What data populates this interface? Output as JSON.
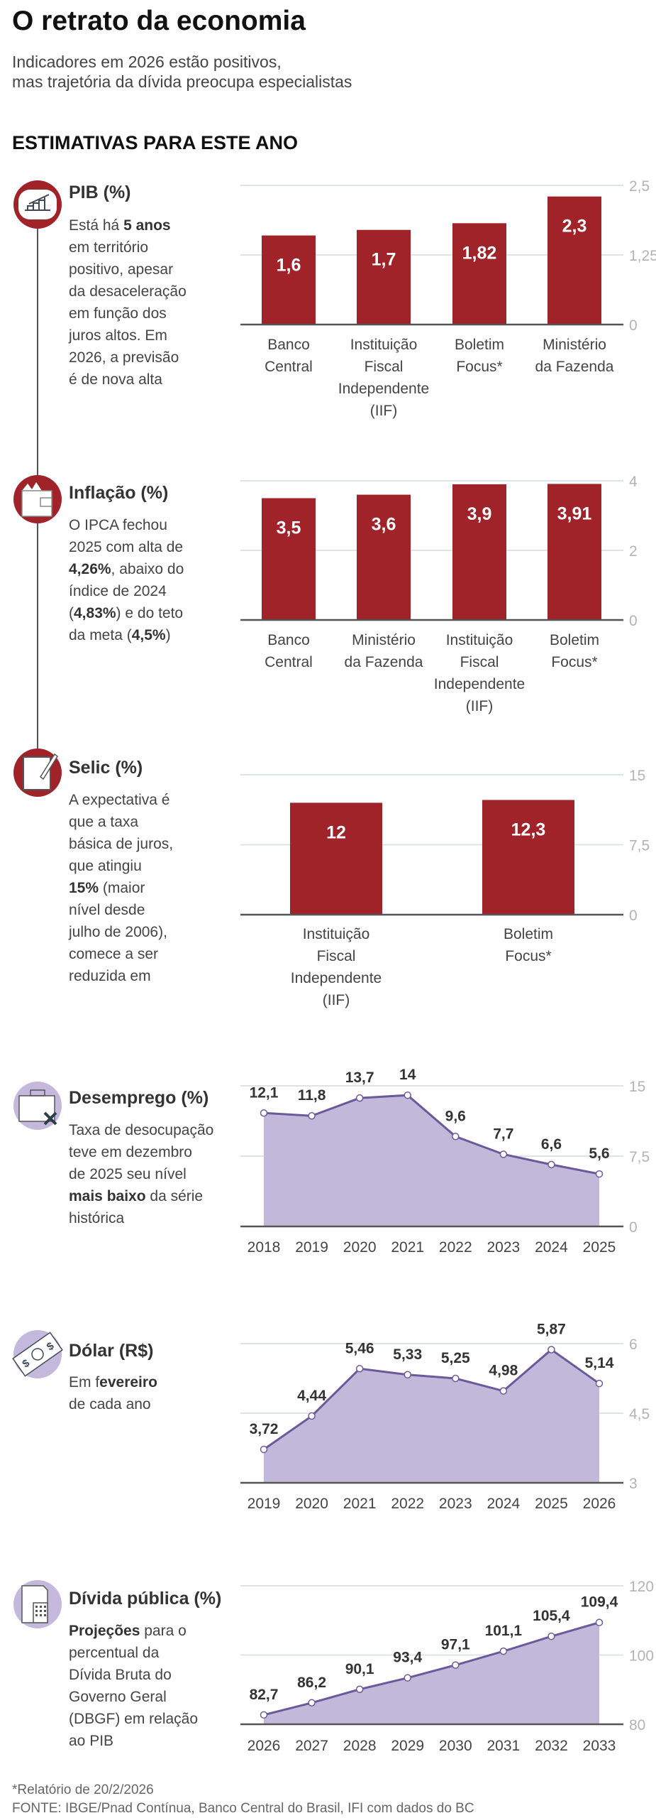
{
  "header": {
    "title": "O retrato da economia",
    "subtitle_lines": [
      "Indicadores em 2026 estão positivos,",
      "mas trajetória da dívida preocupa especialistas"
    ],
    "section_title": "ESTIMATIVAS PARA ESTE ANO"
  },
  "colors": {
    "bar": "#a0232a",
    "area": "#c2b8da",
    "line": "#6a5a9c",
    "icon_red": "#a0232a",
    "icon_purple": "#c4b9dc"
  },
  "indicators": [
    {
      "title": "PIB (%)",
      "icon": "growth-chart-icon",
      "desc": [
        [
          {
            "t": "Está há "
          },
          {
            "t": "5 anos",
            "b": true
          }
        ],
        [
          {
            "t": "em território"
          }
        ],
        [
          {
            "t": "positivo, apesar"
          }
        ],
        [
          {
            "t": "da desaceleração"
          }
        ],
        [
          {
            "t": "em função dos"
          }
        ],
        [
          {
            "t": "juros altos. Em"
          }
        ],
        [
          {
            "t": "2026, a previsão"
          }
        ],
        [
          {
            "t": "é de nova alta"
          }
        ]
      ]
    },
    {
      "title": "Inflação (%)",
      "icon": "wallet-icon",
      "desc": [
        [
          {
            "t": "O IPCA fechou"
          }
        ],
        [
          {
            "t": "2025 com alta de"
          }
        ],
        [
          {
            "t": "4,26%",
            "b": true
          },
          {
            "t": ", abaixo do"
          }
        ],
        [
          {
            "t": "índice de 2024"
          }
        ],
        [
          {
            "t": "("
          },
          {
            "t": "4,83%",
            "b": true
          },
          {
            "t": ") e do teto"
          }
        ],
        [
          {
            "t": "da meta ("
          },
          {
            "t": "4,5%",
            "b": true
          },
          {
            "t": ")"
          }
        ]
      ]
    },
    {
      "title": "Selic (%)",
      "icon": "notepad-pen-icon",
      "desc": [
        [
          {
            "t": "A expectativa é"
          }
        ],
        [
          {
            "t": "que a taxa"
          }
        ],
        [
          {
            "t": "básica de juros,"
          }
        ],
        [
          {
            "t": "que atingiu"
          }
        ],
        [
          {
            "t": "15%",
            "b": true
          },
          {
            "t": " (maior"
          }
        ],
        [
          {
            "t": "nível desde"
          }
        ],
        [
          {
            "t": "julho de 2006),"
          }
        ],
        [
          {
            "t": "comece a ser"
          }
        ],
        [
          {
            "t": "reduzida em"
          }
        ]
      ]
    },
    {
      "title": "Desemprego (%)",
      "icon": "briefcase-x-icon",
      "desc": [
        [
          {
            "t": "Taxa de desocupação"
          }
        ],
        [
          {
            "t": "teve em dezembro"
          }
        ],
        [
          {
            "t": "de 2025 seu nível"
          }
        ],
        [
          {
            "t": "mais baixo",
            "b": true
          },
          {
            "t": " da série"
          }
        ],
        [
          {
            "t": "histórica"
          }
        ]
      ]
    },
    {
      "title": "Dólar (R$)",
      "icon": "banknote-icon",
      "desc": [
        [
          {
            "t": "Em f"
          },
          {
            "t": "evereiro",
            "b": true
          }
        ],
        [
          {
            "t": "de cada ano"
          }
        ]
      ]
    },
    {
      "title": "Dívida pública (%)",
      "icon": "building-document-icon",
      "desc": [
        [
          {
            "t": "Projeções",
            "b": true
          },
          {
            "t": " para o"
          }
        ],
        [
          {
            "t": "percentual da"
          }
        ],
        [
          {
            "t": "Dívida Bruta do"
          }
        ],
        [
          {
            "t": "Governo Geral"
          }
        ],
        [
          {
            "t": "(DBGF) em relação"
          }
        ],
        [
          {
            "t": "ao PIB"
          }
        ]
      ]
    }
  ],
  "chart_data": [
    {
      "type": "bar",
      "title": "PIB (%)",
      "categories": [
        [
          "Banco",
          "Central"
        ],
        [
          "Instituição",
          "Fiscal",
          "Independente",
          "(IIF)"
        ],
        [
          "Boletim",
          "Focus*"
        ],
        [
          "Ministério",
          "da Fazenda"
        ]
      ],
      "values": [
        1.6,
        1.7,
        1.82,
        2.3
      ],
      "value_labels": [
        "1,6",
        "1,7",
        "1,82",
        "2,3"
      ],
      "ylim": [
        0,
        2.5
      ],
      "yticks": [
        0,
        1.25,
        2.5
      ],
      "ytick_labels": [
        "0",
        "1,25",
        "2,5"
      ],
      "grid": true
    },
    {
      "type": "bar",
      "title": "Inflação (%)",
      "categories": [
        [
          "Banco",
          "Central"
        ],
        [
          "Ministério",
          "da Fazenda"
        ],
        [
          "Instituição",
          "Fiscal",
          "Independente",
          "(IIF)"
        ],
        [
          "Boletim",
          "Focus*"
        ]
      ],
      "values": [
        3.5,
        3.6,
        3.9,
        3.91
      ],
      "value_labels": [
        "3,5",
        "3,6",
        "3,9",
        "3,91"
      ],
      "ylim": [
        0,
        4
      ],
      "yticks": [
        0,
        2,
        4
      ],
      "ytick_labels": [
        "0",
        "2",
        "4"
      ],
      "grid": true
    },
    {
      "type": "bar",
      "title": "Selic (%)",
      "categories": [
        [
          "Instituição",
          "Fiscal",
          "Independente",
          "(IIF)"
        ],
        [
          "Boletim",
          "Focus*"
        ]
      ],
      "values": [
        12,
        12.3
      ],
      "value_labels": [
        "12",
        "12,3"
      ],
      "ylim": [
        0,
        15
      ],
      "yticks": [
        0,
        7.5,
        15
      ],
      "ytick_labels": [
        "0",
        "7,5",
        "15"
      ],
      "grid": true
    },
    {
      "type": "area",
      "title": "Desemprego (%)",
      "x": [
        "2018",
        "2019",
        "2020",
        "2021",
        "2022",
        "2023",
        "2024",
        "2025"
      ],
      "values": [
        12.1,
        11.8,
        13.7,
        14,
        9.6,
        7.7,
        6.6,
        5.6
      ],
      "value_labels": [
        "12,1",
        "11,8",
        "13,7",
        "14",
        "9,6",
        "7,7",
        "6,6",
        "5,6"
      ],
      "ylim": [
        0,
        15
      ],
      "yticks": [
        0,
        7.5,
        15
      ],
      "ytick_labels": [
        "0",
        "7,5",
        "15"
      ],
      "grid": true
    },
    {
      "type": "area",
      "title": "Dólar (R$)",
      "x": [
        "2019",
        "2020",
        "2021",
        "2022",
        "2023",
        "2024",
        "2025",
        "2026"
      ],
      "values": [
        3.72,
        4.44,
        5.46,
        5.33,
        5.25,
        4.98,
        5.87,
        5.14
      ],
      "value_labels": [
        "3,72",
        "4,44",
        "5,46",
        "5,33",
        "5,25",
        "4,98",
        "5,87",
        "5,14"
      ],
      "ylim": [
        3,
        6
      ],
      "yticks": [
        3,
        4.5,
        6
      ],
      "ytick_labels": [
        "3",
        "4,5",
        "6"
      ],
      "grid": true
    },
    {
      "type": "area",
      "title": "Dívida pública (%)",
      "x": [
        "2026",
        "2027",
        "2028",
        "2029",
        "2030",
        "2031",
        "2032",
        "2033"
      ],
      "values": [
        82.7,
        86.2,
        90.1,
        93.4,
        97.1,
        101.1,
        105.4,
        109.4
      ],
      "value_labels": [
        "82,7",
        "86,2",
        "90,1",
        "93,4",
        "97,1",
        "101,1",
        "105,4",
        "109,4"
      ],
      "ylim": [
        80,
        120
      ],
      "yticks": [
        80,
        100,
        120
      ],
      "ytick_labels": [
        "80",
        "100",
        "120"
      ],
      "grid": true
    }
  ],
  "footer": {
    "note": "*Relatório de 20/2/2026",
    "source": "FONTE: IBGE/Pnad Contínua, Banco Central do Brasil, IFI com dados do BC"
  }
}
